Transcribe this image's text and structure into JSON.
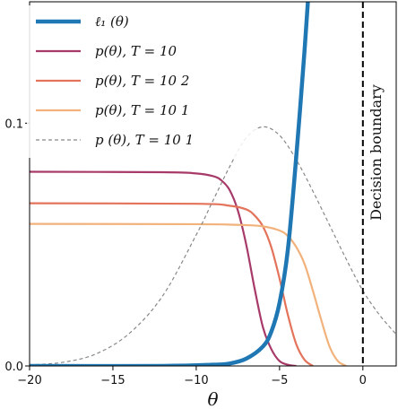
{
  "chart_data": {
    "type": "line",
    "xlabel": "θ",
    "ylabel": "",
    "xlim": [
      -20,
      2
    ],
    "ylim": [
      0,
      0.15
    ],
    "x_ticks": [
      -20,
      -15,
      -10,
      -5,
      0
    ],
    "x_tick_labels": [
      "−20",
      "−15",
      "−10",
      "−5",
      "0"
    ],
    "y_ticks": [
      0,
      0.1
    ],
    "y_tick_labels": [
      "0.0",
      "0.1"
    ],
    "grid": false,
    "legend_position": "top-left",
    "series": [
      {
        "name": "ℓ₁ (θ)",
        "color": "#1f77b4",
        "style": "solid-thick",
        "x": [
          -20,
          -12,
          -9,
          -8,
          -7,
          -6,
          -5.5,
          -5,
          -4.5,
          -4,
          -3.5,
          -3.2
        ],
        "y": [
          0.0,
          0.0,
          0.0005,
          0.001,
          0.003,
          0.008,
          0.014,
          0.026,
          0.048,
          0.086,
          0.13,
          0.16
        ]
      },
      {
        "name": "p(θ),  T = 10",
        "color": "#a83a6a",
        "style": "solid",
        "x": [
          -20,
          -12,
          -10,
          -9,
          -8.5,
          -8,
          -7.5,
          -7,
          -6.5,
          -6,
          -5.5,
          -5,
          -4.5,
          -4
        ],
        "y": [
          0.08,
          0.0798,
          0.0793,
          0.0782,
          0.0765,
          0.0725,
          0.064,
          0.05,
          0.032,
          0.016,
          0.007,
          0.002,
          0.0005,
          0.0
        ]
      },
      {
        "name": "p(θ),  T = 10  2",
        "color": "#e3735a",
        "style": "solid",
        "x": [
          -20,
          -10,
          -8,
          -7,
          -6.5,
          -6,
          -5.5,
          -5,
          -4.5,
          -4,
          -3.5,
          -3
        ],
        "y": [
          0.067,
          0.0668,
          0.066,
          0.0645,
          0.062,
          0.0575,
          0.049,
          0.036,
          0.021,
          0.009,
          0.0025,
          0.0
        ]
      },
      {
        "name": "p(θ),  T = 10  1",
        "color": "#f2b27c",
        "style": "solid",
        "x": [
          -20,
          -10,
          -7,
          -6,
          -5,
          -4.5,
          -4,
          -3.5,
          -3,
          -2.5,
          -2,
          -1.5,
          -1
        ],
        "y": [
          0.0585,
          0.0584,
          0.058,
          0.0575,
          0.0558,
          0.0535,
          0.049,
          0.042,
          0.031,
          0.019,
          0.008,
          0.002,
          0.0
        ]
      },
      {
        "name": "p  (θ),  T = 10  1",
        "color": "#888888",
        "style": "dashed",
        "x": [
          -20,
          -18,
          -16,
          -14,
          -12,
          -10,
          -9,
          -8,
          -7,
          -6,
          -5,
          -4,
          -3,
          -2,
          -1,
          0,
          1,
          2
        ],
        "y": [
          0.0004,
          0.0015,
          0.005,
          0.0135,
          0.029,
          0.054,
          0.068,
          0.082,
          0.094,
          0.0985,
          0.095,
          0.085,
          0.072,
          0.058,
          0.044,
          0.031,
          0.021,
          0.013
        ]
      }
    ],
    "annotations": [
      {
        "text": "Decision boundary",
        "x": 0,
        "style": "vertical-dashed-line"
      }
    ]
  }
}
